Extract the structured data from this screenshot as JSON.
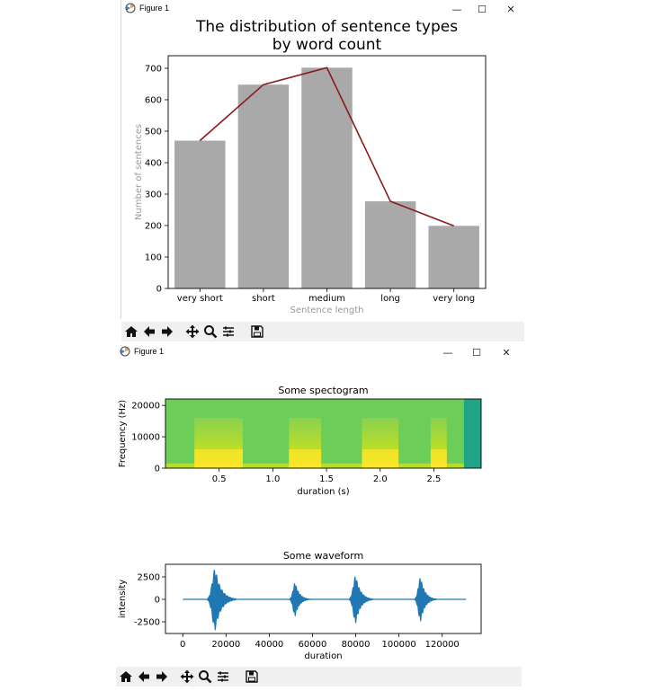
{
  "windows": [
    {
      "title": "Figure 1",
      "controls": {
        "minimize": "—",
        "maximize": "☐",
        "close": "✕"
      }
    },
    {
      "title": "Figure 1",
      "controls": {
        "minimize": "—",
        "maximize": "☐",
        "close": "✕"
      }
    }
  ],
  "toolbar_icons": [
    "home-icon",
    "back-arrow-icon",
    "forward-arrow-icon",
    "pan-icon",
    "zoom-icon",
    "configure-subplots-icon",
    "save-icon"
  ],
  "chart_data": [
    {
      "type": "bar",
      "title": "The distribution of sentence types\nby word count",
      "xlabel": "Sentence length",
      "ylabel": "Number of sentences",
      "categories": [
        "very short",
        "short",
        "medium",
        "long",
        "very long"
      ],
      "values": [
        470,
        648,
        702,
        277,
        199
      ],
      "overlay_line": {
        "values": [
          470,
          648,
          702,
          277,
          199
        ],
        "color": "#8b1a1a"
      },
      "bar_color": "#a9a9a9",
      "ylim": [
        0,
        740
      ],
      "yticks": [
        0,
        100,
        200,
        300,
        400,
        500,
        600,
        700
      ],
      "label_color": "#999999"
    },
    {
      "type": "heatmap",
      "title": "Some spectogram",
      "xlabel": "duration (s)",
      "ylabel": "Frequency (Hz)",
      "xlim": [
        0,
        2.94
      ],
      "ylim": [
        0,
        22050
      ],
      "xticks": [
        0.5,
        1.0,
        1.5,
        2.0,
        2.5
      ],
      "xtick_labels": [
        "0.5",
        "1.0",
        "1.5",
        "2.0",
        "2.5"
      ],
      "yticks": [
        0,
        10000,
        20000
      ],
      "speech_segments_s": [
        [
          0.27,
          0.72
        ],
        [
          1.15,
          1.45
        ],
        [
          1.83,
          2.17
        ],
        [
          2.47,
          2.62
        ]
      ],
      "silence_after_s": 2.78,
      "colormap": "viridis"
    },
    {
      "type": "line",
      "title": "Some waveform",
      "xlabel": "duration",
      "ylabel": "intensity",
      "xlim": [
        -8000,
        138000
      ],
      "ylim": [
        -3800,
        3900
      ],
      "xticks": [
        0,
        20000,
        40000,
        60000,
        80000,
        100000,
        120000
      ],
      "yticks": [
        -2500,
        0,
        2500
      ],
      "bursts": [
        {
          "center": 15000,
          "width": 3000,
          "amplitude": 3500
        },
        {
          "center": 52000,
          "width": 2200,
          "amplitude": 1900
        },
        {
          "center": 80000,
          "width": 2500,
          "amplitude": 2700
        },
        {
          "center": 110000,
          "width": 2300,
          "amplitude": 2500
        }
      ],
      "x_end": 131000,
      "line_color": "#1f77b4"
    }
  ]
}
